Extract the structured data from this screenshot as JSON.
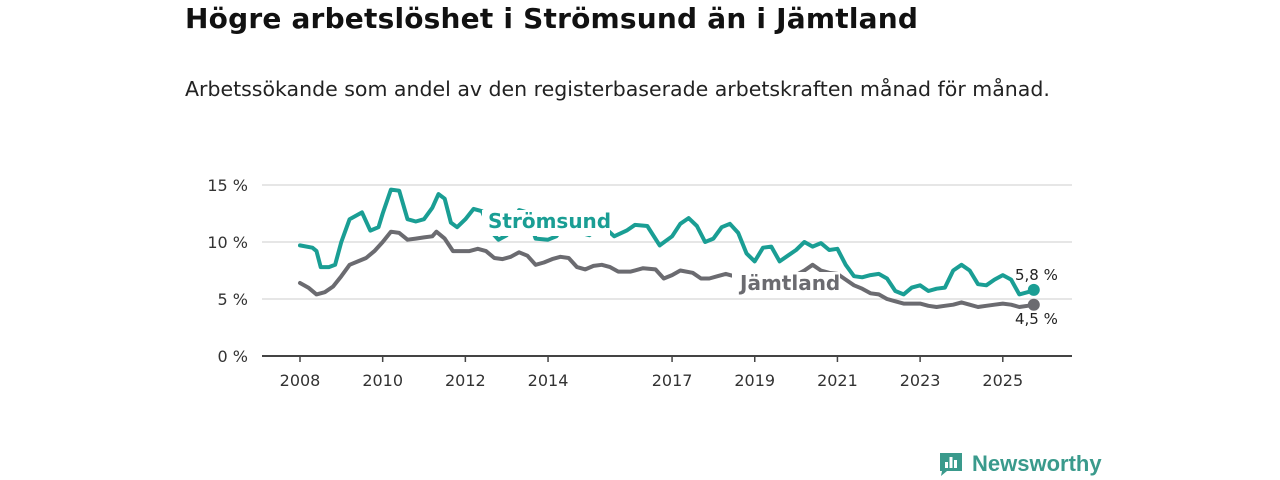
{
  "title": "Högre arbetslöshet i Strömsund än i Jämtland",
  "subtitle": "Arbetssökande som andel av den registerbaserade arbetskraften månad för månad.",
  "brand": "Newsworthy",
  "chart_data": {
    "type": "line",
    "title": "Högre arbetslöshet i Strömsund än i Jämtland",
    "subtitle": "Arbetssökande som andel av den registerbaserade arbetskraften månad för månad.",
    "xlabel": "",
    "ylabel": "",
    "xlim": [
      2008.0,
      2025.9
    ],
    "ylim": [
      0,
      15
    ],
    "y_ticks": [
      0,
      5,
      10,
      15
    ],
    "y_tick_labels": [
      "0 %",
      "5 %",
      "10 %",
      "15 %"
    ],
    "x_ticks": [
      2008,
      2010,
      2012,
      2014,
      2017,
      2019,
      2021,
      2023,
      2025
    ],
    "x_tick_labels": [
      "2008",
      "2010",
      "2012",
      "2014",
      "2017",
      "2019",
      "2021",
      "2023",
      "2025"
    ],
    "grid": true,
    "series": [
      {
        "name": "Strömsund",
        "color": "#1a9e94",
        "end_label": "5,8 %",
        "points": [
          [
            2008.0,
            9.7
          ],
          [
            2008.3,
            9.5
          ],
          [
            2008.4,
            9.2
          ],
          [
            2008.5,
            7.8
          ],
          [
            2008.7,
            7.8
          ],
          [
            2008.85,
            8.0
          ],
          [
            2009.0,
            10.0
          ],
          [
            2009.2,
            12.0
          ],
          [
            2009.5,
            12.6
          ],
          [
            2009.7,
            11.0
          ],
          [
            2009.9,
            11.3
          ],
          [
            2010.0,
            12.5
          ],
          [
            2010.2,
            14.6
          ],
          [
            2010.4,
            14.5
          ],
          [
            2010.6,
            12.0
          ],
          [
            2010.8,
            11.8
          ],
          [
            2011.0,
            12.0
          ],
          [
            2011.2,
            13.0
          ],
          [
            2011.35,
            14.2
          ],
          [
            2011.5,
            13.8
          ],
          [
            2011.65,
            11.7
          ],
          [
            2011.8,
            11.3
          ],
          [
            2012.0,
            12.0
          ],
          [
            2012.2,
            12.9
          ],
          [
            2012.4,
            12.7
          ],
          [
            2012.6,
            11.0
          ],
          [
            2012.8,
            10.2
          ],
          [
            2013.0,
            10.6
          ],
          [
            2013.2,
            12.0
          ],
          [
            2013.3,
            12.8
          ],
          [
            2013.5,
            12.6
          ],
          [
            2013.7,
            10.3
          ],
          [
            2014.0,
            10.2
          ],
          [
            2014.2,
            10.5
          ],
          [
            2014.4,
            11.4
          ],
          [
            2014.6,
            11.2
          ],
          [
            2014.8,
            10.8
          ],
          [
            2015.0,
            10.6
          ],
          [
            2015.3,
            11.5
          ],
          [
            2015.6,
            10.5
          ],
          [
            2015.9,
            11.0
          ],
          [
            2016.1,
            11.5
          ],
          [
            2016.4,
            11.4
          ],
          [
            2016.7,
            9.7
          ],
          [
            2017.0,
            10.5
          ],
          [
            2017.2,
            11.6
          ],
          [
            2017.4,
            12.1
          ],
          [
            2017.6,
            11.4
          ],
          [
            2017.8,
            10.0
          ],
          [
            2018.0,
            10.3
          ],
          [
            2018.2,
            11.3
          ],
          [
            2018.4,
            11.6
          ],
          [
            2018.6,
            10.8
          ],
          [
            2018.8,
            9.0
          ],
          [
            2019.0,
            8.3
          ],
          [
            2019.2,
            9.5
          ],
          [
            2019.4,
            9.6
          ],
          [
            2019.6,
            8.3
          ],
          [
            2019.8,
            8.8
          ],
          [
            2020.0,
            9.3
          ],
          [
            2020.2,
            10.0
          ],
          [
            2020.4,
            9.6
          ],
          [
            2020.6,
            9.9
          ],
          [
            2020.8,
            9.3
          ],
          [
            2021.0,
            9.4
          ],
          [
            2021.2,
            8.0
          ],
          [
            2021.4,
            7.0
          ],
          [
            2021.6,
            6.9
          ],
          [
            2021.8,
            7.1
          ],
          [
            2022.0,
            7.2
          ],
          [
            2022.2,
            6.8
          ],
          [
            2022.4,
            5.7
          ],
          [
            2022.6,
            5.4
          ],
          [
            2022.8,
            6.0
          ],
          [
            2023.0,
            6.2
          ],
          [
            2023.2,
            5.7
          ],
          [
            2023.4,
            5.9
          ],
          [
            2023.6,
            6.0
          ],
          [
            2023.8,
            7.5
          ],
          [
            2024.0,
            8.0
          ],
          [
            2024.2,
            7.5
          ],
          [
            2024.4,
            6.3
          ],
          [
            2024.6,
            6.2
          ],
          [
            2024.8,
            6.7
          ],
          [
            2025.0,
            7.1
          ],
          [
            2025.2,
            6.7
          ],
          [
            2025.4,
            5.4
          ],
          [
            2025.6,
            5.6
          ],
          [
            2025.75,
            5.8
          ]
        ]
      },
      {
        "name": "Jämtland",
        "color": "#6b6b70",
        "end_label": "4,5 %",
        "points": [
          [
            2008.0,
            6.4
          ],
          [
            2008.2,
            6.0
          ],
          [
            2008.4,
            5.4
          ],
          [
            2008.6,
            5.6
          ],
          [
            2008.8,
            6.1
          ],
          [
            2009.0,
            7.0
          ],
          [
            2009.2,
            8.0
          ],
          [
            2009.4,
            8.3
          ],
          [
            2009.6,
            8.6
          ],
          [
            2009.8,
            9.2
          ],
          [
            2010.0,
            10.0
          ],
          [
            2010.2,
            10.9
          ],
          [
            2010.4,
            10.8
          ],
          [
            2010.6,
            10.2
          ],
          [
            2010.8,
            10.3
          ],
          [
            2011.0,
            10.4
          ],
          [
            2011.2,
            10.5
          ],
          [
            2011.3,
            10.9
          ],
          [
            2011.5,
            10.3
          ],
          [
            2011.7,
            9.2
          ],
          [
            2011.9,
            9.2
          ],
          [
            2012.1,
            9.2
          ],
          [
            2012.3,
            9.4
          ],
          [
            2012.5,
            9.2
          ],
          [
            2012.7,
            8.6
          ],
          [
            2012.9,
            8.5
          ],
          [
            2013.1,
            8.7
          ],
          [
            2013.3,
            9.1
          ],
          [
            2013.5,
            8.8
          ],
          [
            2013.7,
            8.0
          ],
          [
            2013.9,
            8.2
          ],
          [
            2014.1,
            8.5
          ],
          [
            2014.3,
            8.7
          ],
          [
            2014.5,
            8.6
          ],
          [
            2014.7,
            7.8
          ],
          [
            2014.9,
            7.6
          ],
          [
            2015.1,
            7.9
          ],
          [
            2015.3,
            8.0
          ],
          [
            2015.5,
            7.8
          ],
          [
            2015.7,
            7.4
          ],
          [
            2016.0,
            7.4
          ],
          [
            2016.3,
            7.7
          ],
          [
            2016.6,
            7.6
          ],
          [
            2016.8,
            6.8
          ],
          [
            2017.0,
            7.1
          ],
          [
            2017.2,
            7.5
          ],
          [
            2017.5,
            7.3
          ],
          [
            2017.7,
            6.8
          ],
          [
            2017.9,
            6.8
          ],
          [
            2018.1,
            7.0
          ],
          [
            2018.3,
            7.2
          ],
          [
            2018.5,
            7.0
          ],
          [
            2018.7,
            6.5
          ],
          [
            2018.85,
            6.0
          ],
          [
            2019.1,
            6.3
          ],
          [
            2019.3,
            6.5
          ],
          [
            2019.5,
            6.2
          ],
          [
            2019.7,
            6.4
          ],
          [
            2019.9,
            6.9
          ],
          [
            2020.2,
            7.5
          ],
          [
            2020.4,
            8.0
          ],
          [
            2020.6,
            7.5
          ],
          [
            2020.8,
            7.3
          ],
          [
            2021.0,
            7.2
          ],
          [
            2021.2,
            6.7
          ],
          [
            2021.4,
            6.2
          ],
          [
            2021.6,
            5.9
          ],
          [
            2021.8,
            5.5
          ],
          [
            2022.0,
            5.4
          ],
          [
            2022.2,
            5.0
          ],
          [
            2022.4,
            4.8
          ],
          [
            2022.6,
            4.6
          ],
          [
            2022.8,
            4.6
          ],
          [
            2023.0,
            4.6
          ],
          [
            2023.2,
            4.4
          ],
          [
            2023.4,
            4.3
          ],
          [
            2023.6,
            4.4
          ],
          [
            2023.8,
            4.5
          ],
          [
            2024.0,
            4.7
          ],
          [
            2024.2,
            4.5
          ],
          [
            2024.4,
            4.3
          ],
          [
            2024.6,
            4.4
          ],
          [
            2024.8,
            4.5
          ],
          [
            2025.0,
            4.6
          ],
          [
            2025.2,
            4.5
          ],
          [
            2025.4,
            4.3
          ],
          [
            2025.6,
            4.4
          ],
          [
            2025.75,
            4.5
          ]
        ]
      }
    ]
  }
}
